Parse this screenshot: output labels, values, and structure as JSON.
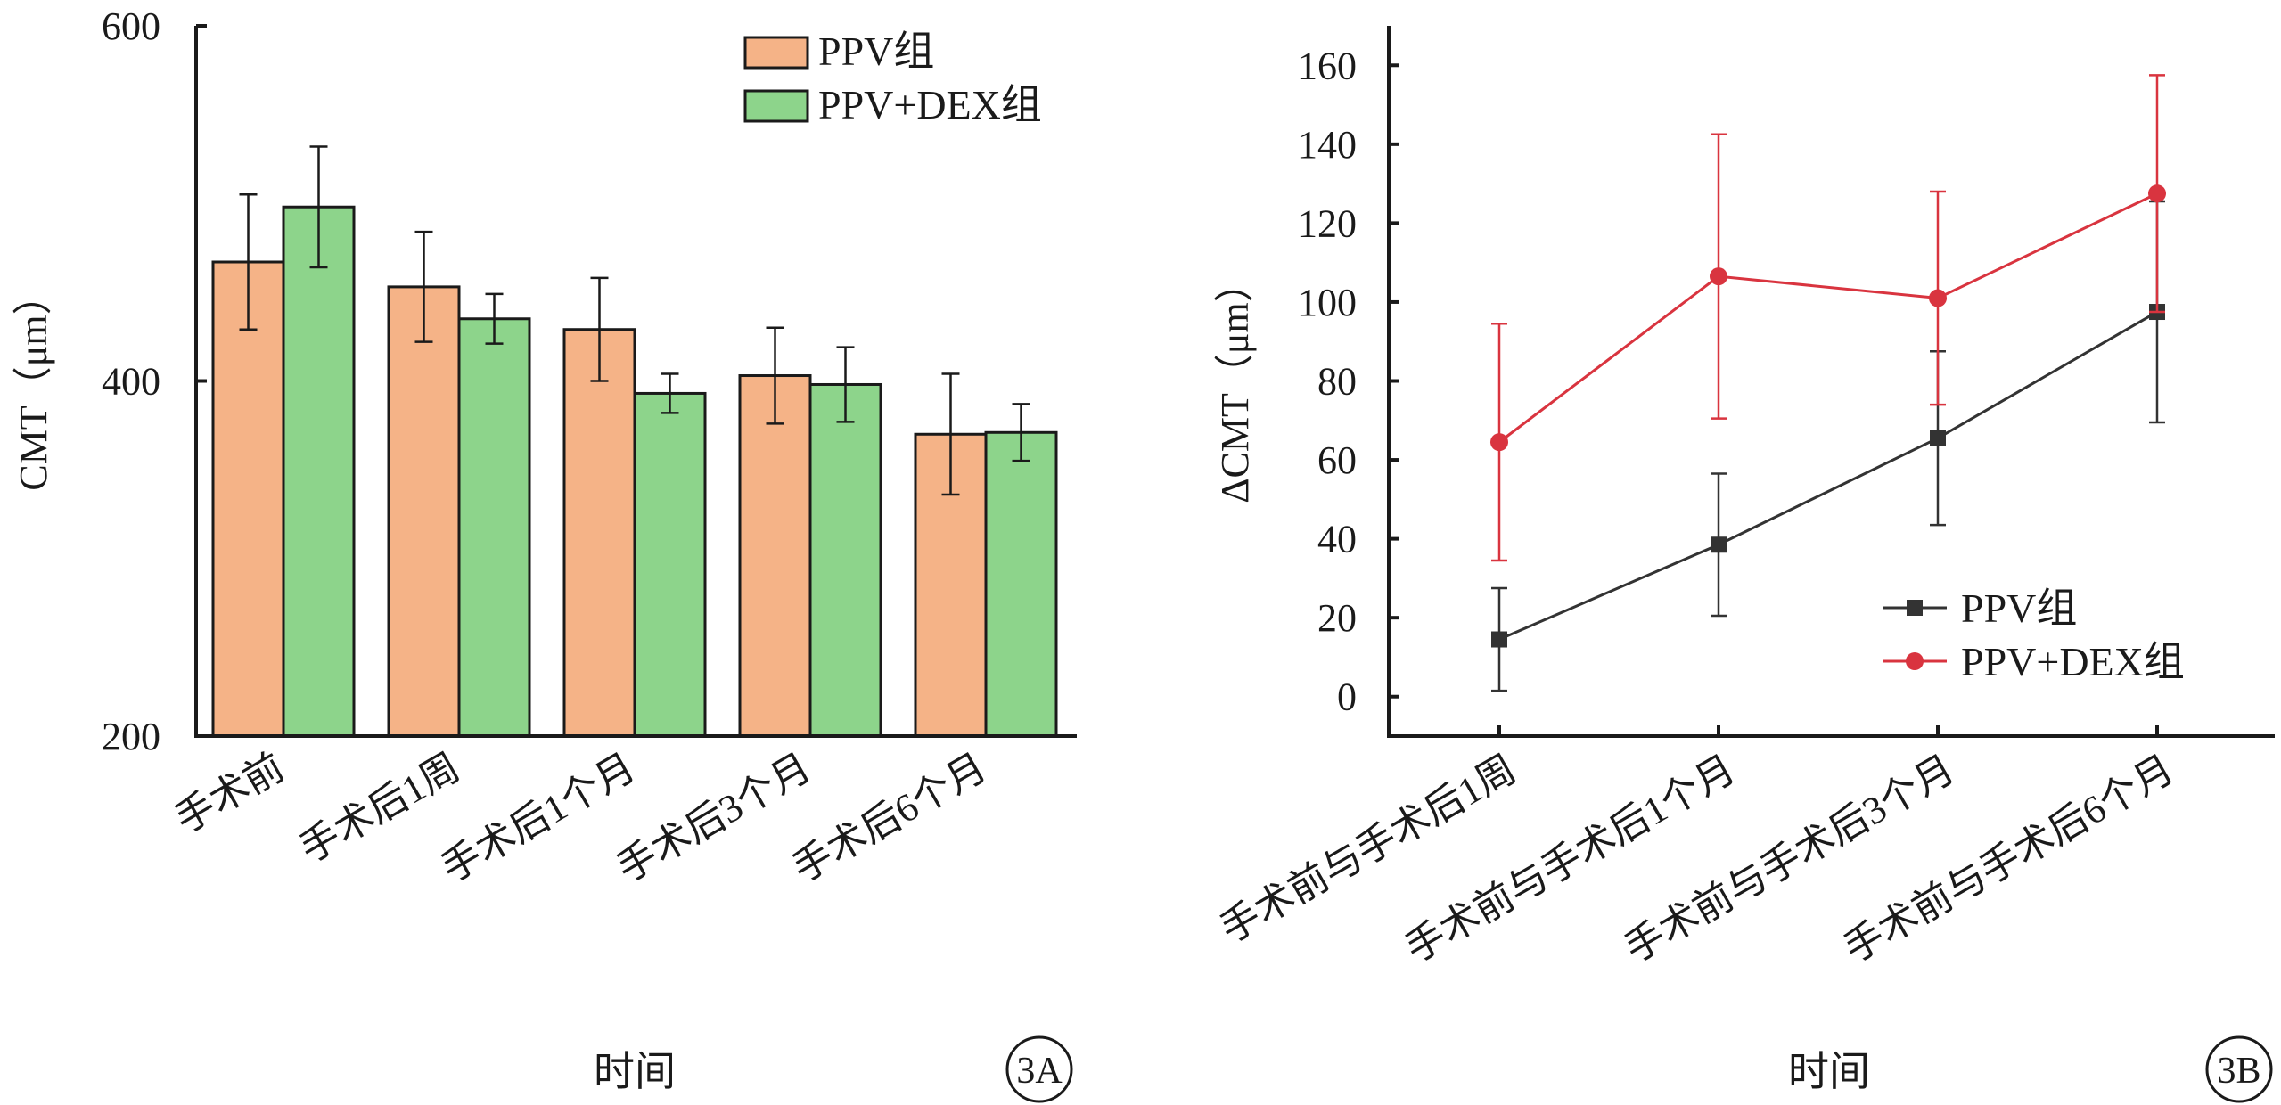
{
  "colors": {
    "ppv_bar": "#F5B387",
    "dex_bar": "#8DD48B",
    "ppv_line": "#333333",
    "dex_line": "#D9343F",
    "axis": "#1a1a1a"
  },
  "chart_data": [
    {
      "panel": "3A",
      "type": "bar",
      "xlabel": "时间",
      "ylabel": "CMT（μm）",
      "ylim": [
        200,
        600
      ],
      "yticks": [
        200,
        400,
        600
      ],
      "categories": [
        "手术前",
        "手术后1周",
        "手术后1个月",
        "手术后3个月",
        "手术后6个月"
      ],
      "series": [
        {
          "name": "PPV组",
          "values": [
            467,
            453,
            429,
            403,
            370
          ],
          "errors": [
            38,
            31,
            29,
            27,
            34
          ]
        },
        {
          "name": "PPV+DEX组",
          "values": [
            498,
            435,
            393,
            398,
            371
          ],
          "errors": [
            34,
            14,
            11,
            21,
            16
          ]
        }
      ],
      "legend": "top-right",
      "grid": false
    },
    {
      "panel": "3B",
      "type": "line",
      "xlabel": "时间",
      "ylabel": "ΔCMT（μm）",
      "ylim": [
        -10,
        170
      ],
      "yticks": [
        0,
        20,
        40,
        60,
        80,
        100,
        120,
        140,
        160
      ],
      "categories": [
        "手术前与手术后1周",
        "手术前与手术后1个月",
        "手术前与手术后3个月",
        "手术前与手术后6个月"
      ],
      "series": [
        {
          "name": "PPV组",
          "marker": "square",
          "values": [
            14.5,
            38.5,
            65.5,
            97.5
          ],
          "errors": [
            13,
            18,
            22,
            28
          ]
        },
        {
          "name": "PPV+DEX组",
          "marker": "circle",
          "values": [
            64.5,
            106.5,
            101,
            127.5
          ],
          "errors": [
            30,
            36,
            27,
            30
          ]
        }
      ],
      "legend": "bottom-right",
      "grid": false
    }
  ]
}
